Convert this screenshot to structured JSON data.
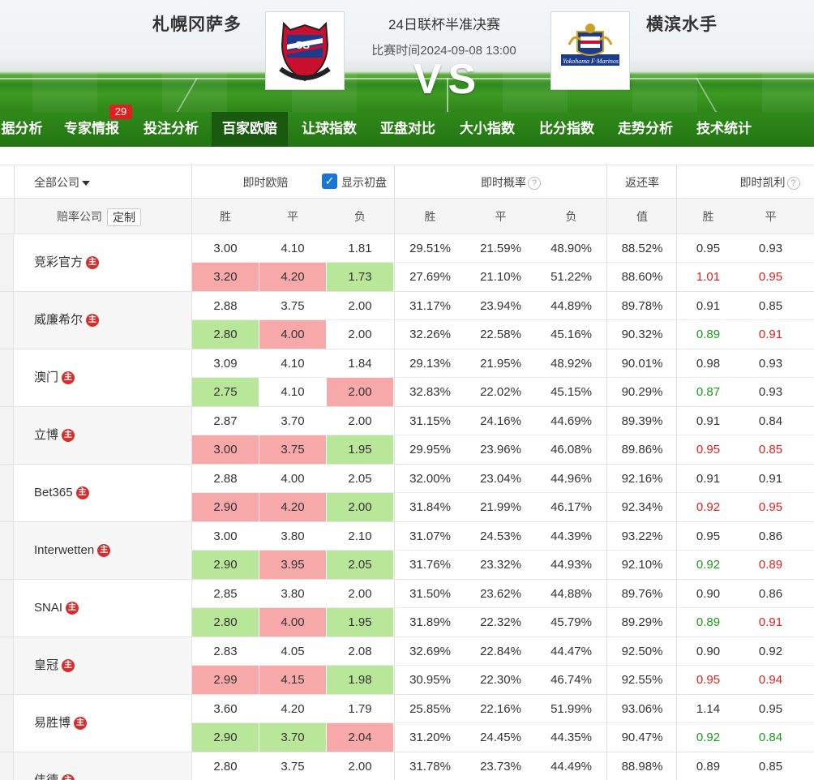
{
  "match": {
    "home_team": "札幌冈萨多",
    "away_team": "横滨水手",
    "title": "24日联杯半准决赛",
    "time": "比赛时间2024-09-08 13:00",
    "vs": "VS"
  },
  "nav": {
    "items": [
      "据分析",
      "专家情报",
      "投注分析",
      "百家欧赔",
      "让球指数",
      "亚盘对比",
      "大小指数",
      "比分指数",
      "走势分析",
      "技术统计"
    ],
    "active_index": 3,
    "badge": "29"
  },
  "table": {
    "header1": {
      "company_filter": "全部公司",
      "live_odds": "即时欧赔",
      "show_initial": "显示初盘",
      "live_prob": "即时概率",
      "return_rate": "返还率",
      "kelly": "即时凯利"
    },
    "header2": {
      "company": "赔率公司",
      "custom": "定制",
      "win": "胜",
      "draw": "平",
      "lose": "负",
      "p_win": "胜",
      "p_draw": "平",
      "p_lose": "负",
      "value": "值",
      "k_win": "胜",
      "k_draw": "平"
    },
    "zhu_label": "主",
    "rows": [
      {
        "name": "竞彩官方",
        "l1": {
          "w": "3.00",
          "d": "4.10",
          "l": "1.81",
          "pw": "29.51%",
          "pd": "21.59%",
          "pl": "48.90%",
          "r": "88.52%",
          "kw": "0.95",
          "kd": "0.93"
        },
        "l2": {
          "w": "3.20",
          "d": "4.20",
          "l": "1.73",
          "pw": "27.69%",
          "pd": "21.10%",
          "pl": "51.22%",
          "r": "88.60%",
          "kw": "1.01",
          "kd": "0.95"
        },
        "bg": [
          "red",
          "red",
          "green"
        ],
        "kc": [
          "red",
          "red"
        ]
      },
      {
        "name": "威廉希尔",
        "l1": {
          "w": "2.88",
          "d": "3.75",
          "l": "2.00",
          "pw": "31.17%",
          "pd": "23.94%",
          "pl": "44.89%",
          "r": "89.78%",
          "kw": "0.91",
          "kd": "0.85"
        },
        "l2": {
          "w": "2.80",
          "d": "4.00",
          "l": "2.00",
          "pw": "32.26%",
          "pd": "22.58%",
          "pl": "45.16%",
          "r": "90.32%",
          "kw": "0.89",
          "kd": "0.91"
        },
        "bg": [
          "green",
          "red",
          ""
        ],
        "kc": [
          "green",
          "red"
        ]
      },
      {
        "name": "澳门",
        "l1": {
          "w": "3.09",
          "d": "4.10",
          "l": "1.84",
          "pw": "29.13%",
          "pd": "21.95%",
          "pl": "48.92%",
          "r": "90.01%",
          "kw": "0.98",
          "kd": "0.93"
        },
        "l2": {
          "w": "2.75",
          "d": "4.10",
          "l": "2.00",
          "pw": "32.83%",
          "pd": "22.02%",
          "pl": "45.15%",
          "r": "90.29%",
          "kw": "0.87",
          "kd": "0.93"
        },
        "bg": [
          "green",
          "",
          "red"
        ],
        "kc": [
          "green",
          ""
        ]
      },
      {
        "name": "立博",
        "l1": {
          "w": "2.87",
          "d": "3.70",
          "l": "2.00",
          "pw": "31.15%",
          "pd": "24.16%",
          "pl": "44.69%",
          "r": "89.39%",
          "kw": "0.91",
          "kd": "0.84"
        },
        "l2": {
          "w": "3.00",
          "d": "3.75",
          "l": "1.95",
          "pw": "29.95%",
          "pd": "23.96%",
          "pl": "46.08%",
          "r": "89.86%",
          "kw": "0.95",
          "kd": "0.85"
        },
        "bg": [
          "red",
          "red",
          "green"
        ],
        "kc": [
          "red",
          "red"
        ]
      },
      {
        "name": "Bet365",
        "l1": {
          "w": "2.88",
          "d": "4.00",
          "l": "2.05",
          "pw": "32.00%",
          "pd": "23.04%",
          "pl": "44.96%",
          "r": "92.16%",
          "kw": "0.91",
          "kd": "0.91"
        },
        "l2": {
          "w": "2.90",
          "d": "4.20",
          "l": "2.00",
          "pw": "31.84%",
          "pd": "21.99%",
          "pl": "46.17%",
          "r": "92.34%",
          "kw": "0.92",
          "kd": "0.95"
        },
        "bg": [
          "red",
          "red",
          "green"
        ],
        "kc": [
          "red",
          "red"
        ]
      },
      {
        "name": "Interwetten",
        "l1": {
          "w": "3.00",
          "d": "3.80",
          "l": "2.10",
          "pw": "31.07%",
          "pd": "24.53%",
          "pl": "44.39%",
          "r": "93.22%",
          "kw": "0.95",
          "kd": "0.86"
        },
        "l2": {
          "w": "2.90",
          "d": "3.95",
          "l": "2.05",
          "pw": "31.76%",
          "pd": "23.32%",
          "pl": "44.93%",
          "r": "92.10%",
          "kw": "0.92",
          "kd": "0.89"
        },
        "bg": [
          "green",
          "red",
          "green"
        ],
        "kc": [
          "green",
          "red"
        ]
      },
      {
        "name": "SNAI",
        "l1": {
          "w": "2.85",
          "d": "3.80",
          "l": "2.00",
          "pw": "31.50%",
          "pd": "23.62%",
          "pl": "44.88%",
          "r": "89.76%",
          "kw": "0.90",
          "kd": "0.86"
        },
        "l2": {
          "w": "2.80",
          "d": "4.00",
          "l": "1.95",
          "pw": "31.89%",
          "pd": "22.32%",
          "pl": "45.79%",
          "r": "89.29%",
          "kw": "0.89",
          "kd": "0.91"
        },
        "bg": [
          "green",
          "red",
          "green"
        ],
        "kc": [
          "green",
          "red"
        ]
      },
      {
        "name": "皇冠",
        "l1": {
          "w": "2.83",
          "d": "4.05",
          "l": "2.08",
          "pw": "32.69%",
          "pd": "22.84%",
          "pl": "44.47%",
          "r": "92.50%",
          "kw": "0.90",
          "kd": "0.92"
        },
        "l2": {
          "w": "2.99",
          "d": "4.15",
          "l": "1.98",
          "pw": "30.95%",
          "pd": "22.30%",
          "pl": "46.74%",
          "r": "92.55%",
          "kw": "0.95",
          "kd": "0.94"
        },
        "bg": [
          "red",
          "red",
          "green"
        ],
        "kc": [
          "red",
          "red"
        ]
      },
      {
        "name": "易胜博",
        "l1": {
          "w": "3.60",
          "d": "4.20",
          "l": "1.79",
          "pw": "25.85%",
          "pd": "22.16%",
          "pl": "51.99%",
          "r": "93.06%",
          "kw": "1.14",
          "kd": "0.95"
        },
        "l2": {
          "w": "2.90",
          "d": "3.70",
          "l": "2.04",
          "pw": "31.20%",
          "pd": "24.45%",
          "pl": "44.35%",
          "r": "90.47%",
          "kw": "0.92",
          "kd": "0.84"
        },
        "bg": [
          "green",
          "green",
          "red"
        ],
        "kc": [
          "green",
          "green"
        ]
      },
      {
        "name": "伟德",
        "l1": {
          "w": "2.80",
          "d": "3.75",
          "l": "2.00",
          "pw": "31.78%",
          "pd": "23.73%",
          "pl": "44.49%",
          "r": "88.98%",
          "kw": "0.89",
          "kd": "0.85"
        },
        "l2": {
          "w": "",
          "d": "",
          "l": "",
          "pw": "",
          "pd": "",
          "pl": "",
          "r": "",
          "kw": "",
          "kd": ""
        },
        "bg": [
          "red",
          "red",
          ""
        ],
        "kc": [
          "",
          ""
        ]
      }
    ]
  },
  "colors": {
    "up_bg": "#f7a9a9",
    "down_bg": "#b8e79a",
    "up_text": "#e02020",
    "down_text": "#1a9a1a",
    "nav_green": "#2f8a1a"
  }
}
